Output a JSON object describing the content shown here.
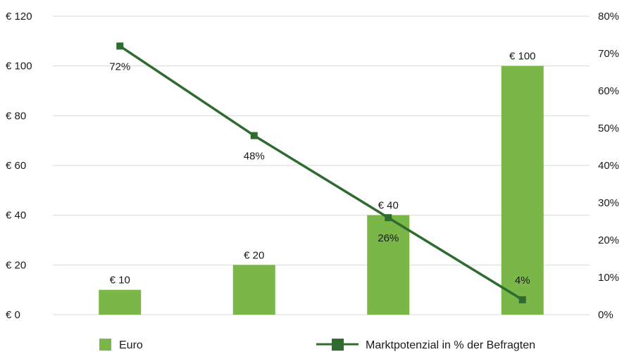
{
  "chart_data": {
    "type": "bar",
    "categories": [
      "",
      "",
      "",
      ""
    ],
    "series": [
      {
        "name": "Euro",
        "type": "bar",
        "axis": "left",
        "values": [
          10,
          20,
          40,
          100
        ],
        "labels": [
          "€ 10",
          "€ 20",
          "€ 40",
          "€ 100"
        ],
        "color": "#7ab648"
      },
      {
        "name": "Marktpotenzial in % der Befragten",
        "type": "line",
        "axis": "right",
        "values": [
          72,
          48,
          26,
          4
        ],
        "labels": [
          "72%",
          "48%",
          "26%",
          "4%"
        ],
        "color": "#2e6b2e",
        "marker": "square"
      }
    ],
    "y_left": {
      "ylim": [
        0,
        120
      ],
      "ticks": [
        0,
        20,
        40,
        60,
        80,
        100,
        120
      ],
      "tick_labels": [
        "€ 0",
        "€ 20",
        "€ 40",
        "€ 60",
        "€ 80",
        "€ 100",
        "€ 120"
      ]
    },
    "y_right": {
      "ylim": [
        0,
        80
      ],
      "ticks": [
        0,
        10,
        20,
        30,
        40,
        50,
        60,
        70,
        80
      ],
      "tick_labels": [
        "0%",
        "10%",
        "20%",
        "30%",
        "40%",
        "50%",
        "60%",
        "70%",
        "80%"
      ]
    },
    "grid": true,
    "legend": "bottom",
    "gridline_color": "#d9d9d9"
  }
}
